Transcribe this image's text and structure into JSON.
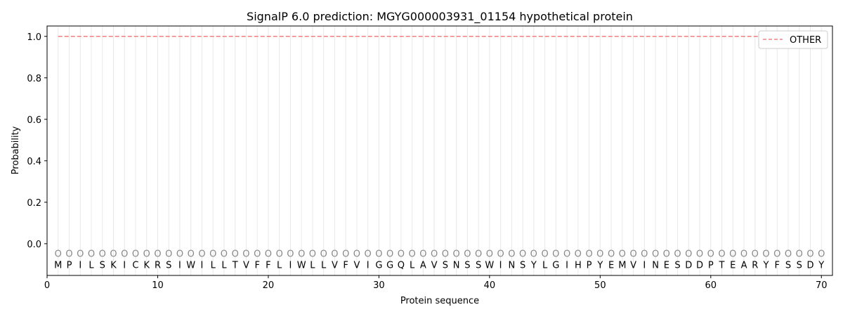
{
  "chart_data": {
    "type": "line",
    "title": "SignalP 6.0 prediction: MGYG000003931_01154 hypothetical protein",
    "xlabel": "Protein sequence",
    "ylabel": "Probability",
    "xlim": [
      0,
      71
    ],
    "ylim": [
      -0.153,
      1.05
    ],
    "xticks": [
      0,
      10,
      20,
      30,
      40,
      50,
      60,
      70
    ],
    "yticks": [
      "0.0",
      "0.2",
      "0.4",
      "0.6",
      "0.8",
      "1.0"
    ],
    "grid": "vertical per residue",
    "legend": {
      "placement": "top-right",
      "entries": [
        "OTHER"
      ]
    },
    "sequence": [
      "M",
      "P",
      "I",
      "L",
      "S",
      "K",
      "I",
      "C",
      "K",
      "R",
      "S",
      "I",
      "W",
      "I",
      "L",
      "L",
      "T",
      "V",
      "F",
      "F",
      "L",
      "I",
      "W",
      "L",
      "L",
      "V",
      "F",
      "V",
      "I",
      "G",
      "G",
      "Q",
      "L",
      "A",
      "V",
      "S",
      "N",
      "S",
      "S",
      "W",
      "I",
      "N",
      "S",
      "Y",
      "L",
      "G",
      "I",
      "H",
      "P",
      "Y",
      "E",
      "M",
      "V",
      "I",
      "N",
      "E",
      "S",
      "D",
      "D",
      "P",
      "T",
      "E",
      "A",
      "R",
      "Y",
      "F",
      "S",
      "S",
      "D",
      "Y"
    ],
    "predicted_labels": "OOOOOOOOOOOOOOOOOOOOOOOOOOOOOOOOOOOOOOOOOOOOOOOOOOOOOOOOOOOOOOOOOOOOOO",
    "series": [
      {
        "name": "OTHER",
        "color": "#f08080",
        "style": "dashed",
        "x_range": [
          1,
          70
        ],
        "value": 1.0
      }
    ]
  }
}
